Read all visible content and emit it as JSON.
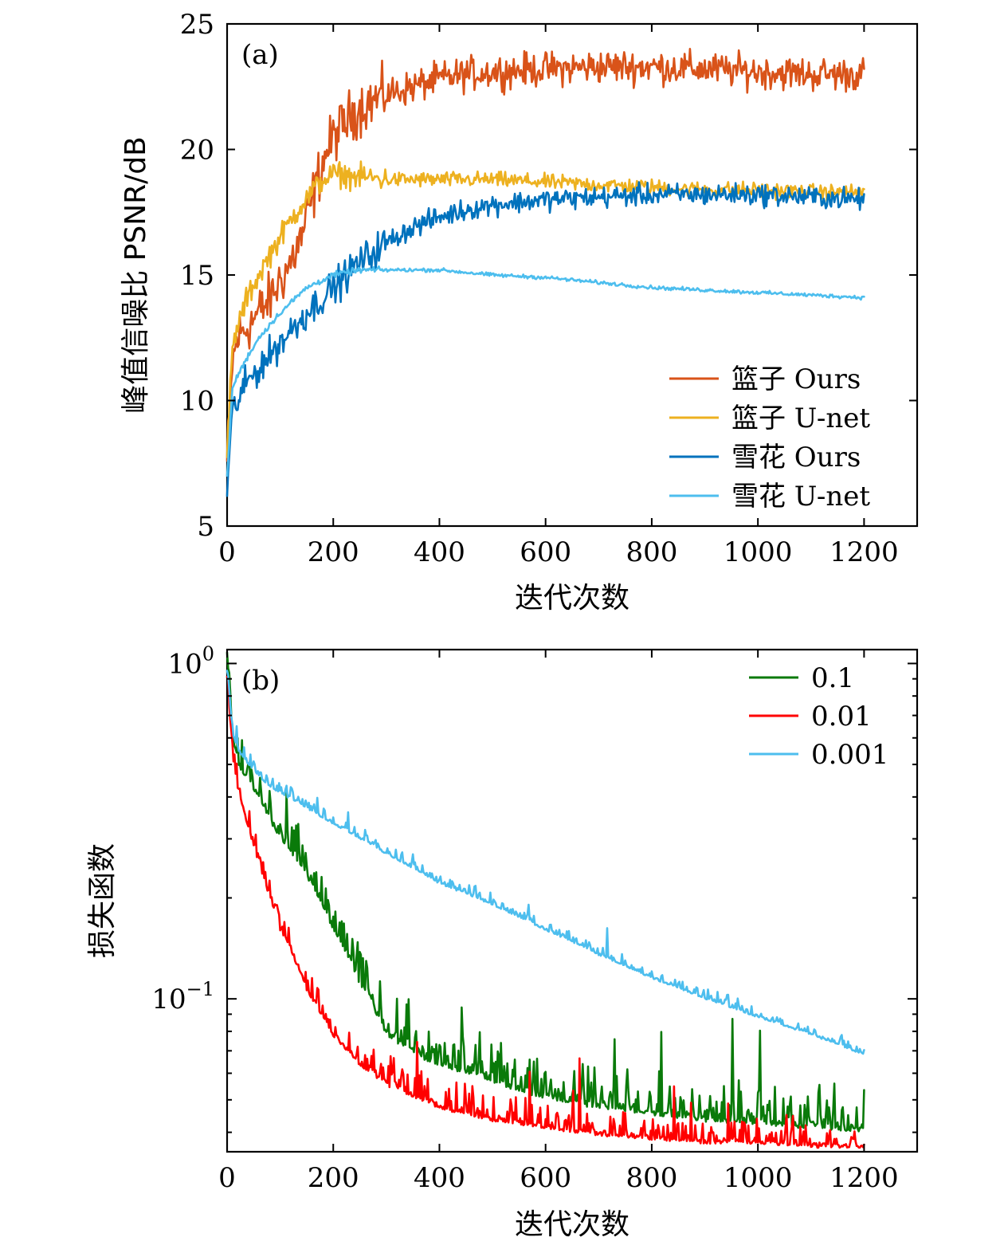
{
  "chart_data": [
    {
      "type": "line",
      "panel_label": "(a)",
      "xlabel": "迭代次数",
      "ylabel": "峰值信噪比 PSNR/dB",
      "xlim": [
        0,
        1300
      ],
      "ylim": [
        5,
        25
      ],
      "xticks": [
        0,
        200,
        400,
        600,
        800,
        1000,
        1200
      ],
      "xtick_labels": [
        "0",
        "200",
        "400",
        "600",
        "800",
        "1000",
        "1200"
      ],
      "yticks": [
        5,
        10,
        15,
        20,
        25
      ],
      "ytick_labels": [
        "5",
        "10",
        "15",
        "20",
        "25"
      ],
      "legend_position": "lower-right",
      "grid": false,
      "series": [
        {
          "name": "篮子 Ours",
          "color": "#d95319",
          "noise": 0.55,
          "x": [
            0,
            10,
            20,
            40,
            60,
            80,
            100,
            120,
            140,
            160,
            180,
            200,
            220,
            240,
            260,
            300,
            350,
            400,
            450,
            500,
            600,
            700,
            800,
            900,
            1000,
            1100,
            1200
          ],
          "y": [
            7.5,
            11.5,
            12.5,
            13.0,
            13.5,
            14.0,
            14.8,
            15.5,
            16.5,
            18.0,
            19.5,
            20.5,
            21.0,
            21.5,
            21.8,
            22.2,
            22.5,
            22.8,
            23.0,
            23.1,
            23.2,
            23.3,
            23.3,
            23.2,
            23.1,
            23.0,
            23.0
          ]
        },
        {
          "name": "篮子 U-net",
          "color": "#edb120",
          "noise": 0.25,
          "x": [
            0,
            10,
            20,
            40,
            60,
            80,
            100,
            120,
            140,
            160,
            180,
            200,
            220,
            240,
            260,
            300,
            350,
            400,
            500,
            600,
            700,
            800,
            900,
            1000,
            1100,
            1200
          ],
          "y": [
            8.0,
            12.0,
            13.0,
            14.2,
            15.0,
            15.8,
            16.5,
            17.2,
            17.8,
            18.3,
            18.8,
            19.0,
            19.0,
            18.9,
            18.9,
            18.8,
            18.8,
            18.8,
            18.8,
            18.7,
            18.6,
            18.5,
            18.4,
            18.4,
            18.3,
            18.3
          ]
        },
        {
          "name": "雪花 Ours",
          "color": "#0072bd",
          "noise": 0.35,
          "x": [
            0,
            10,
            20,
            40,
            60,
            80,
            100,
            150,
            200,
            250,
            300,
            350,
            400,
            450,
            500,
            550,
            600,
            700,
            800,
            900,
            1000,
            1100,
            1200
          ],
          "y": [
            6.5,
            9.5,
            10.0,
            10.8,
            11.3,
            11.8,
            12.3,
            13.5,
            14.5,
            15.5,
            16.3,
            16.9,
            17.3,
            17.6,
            17.8,
            17.9,
            18.0,
            18.1,
            18.2,
            18.2,
            18.2,
            18.1,
            18.0
          ]
        },
        {
          "name": "雪花 U-net",
          "color": "#4dbeee",
          "noise": 0.06,
          "x": [
            0,
            10,
            20,
            40,
            60,
            80,
            100,
            150,
            200,
            250,
            300,
            350,
            400,
            500,
            600,
            700,
            800,
            900,
            1000,
            1100,
            1200
          ],
          "y": [
            7.0,
            10.5,
            11.0,
            11.8,
            12.5,
            13.0,
            13.5,
            14.5,
            15.0,
            15.2,
            15.2,
            15.2,
            15.2,
            15.0,
            14.9,
            14.7,
            14.5,
            14.4,
            14.3,
            14.2,
            14.1
          ]
        }
      ]
    },
    {
      "type": "line",
      "panel_label": "(b)",
      "xlabel": "迭代次数",
      "ylabel": "损失函数",
      "yscale": "log",
      "xlim": [
        0,
        1300
      ],
      "ylim": [
        0.035,
        1.1
      ],
      "xticks": [
        0,
        200,
        400,
        600,
        800,
        1000,
        1200
      ],
      "xtick_labels": [
        "0",
        "200",
        "400",
        "600",
        "800",
        "1000",
        "1200"
      ],
      "yticks_major": [
        1,
        0.1
      ],
      "ytick_labels": [
        {
          "base": "10",
          "exp": "0"
        },
        {
          "base": "10",
          "exp": "−1"
        }
      ],
      "legend_position": "top-right",
      "grid": false,
      "series": [
        {
          "name": "0.1",
          "color": "#0a7a0a",
          "noise": 0.22,
          "x": [
            0,
            10,
            20,
            40,
            60,
            80,
            100,
            150,
            200,
            250,
            300,
            350,
            400,
            500,
            600,
            700,
            800,
            900,
            1000,
            1100,
            1200
          ],
          "y": [
            1.0,
            0.6,
            0.5,
            0.44,
            0.4,
            0.34,
            0.3,
            0.23,
            0.16,
            0.11,
            0.078,
            0.068,
            0.063,
            0.056,
            0.05,
            0.047,
            0.045,
            0.043,
            0.042,
            0.041,
            0.04
          ]
        },
        {
          "name": "0.01",
          "color": "#ff0000",
          "noise": 0.15,
          "x": [
            0,
            10,
            20,
            40,
            60,
            80,
            100,
            150,
            200,
            250,
            300,
            350,
            400,
            500,
            600,
            700,
            800,
            900,
            1000,
            1100,
            1200
          ],
          "y": [
            0.9,
            0.52,
            0.42,
            0.32,
            0.25,
            0.2,
            0.16,
            0.105,
            0.077,
            0.063,
            0.055,
            0.051,
            0.047,
            0.043,
            0.041,
            0.039,
            0.038,
            0.037,
            0.037,
            0.036,
            0.036
          ]
        },
        {
          "name": "0.001",
          "color": "#4dbeee",
          "noise": 0.06,
          "x": [
            0,
            10,
            20,
            40,
            60,
            80,
            100,
            150,
            200,
            250,
            300,
            400,
            500,
            600,
            700,
            800,
            900,
            1000,
            1100,
            1200
          ],
          "y": [
            0.95,
            0.62,
            0.55,
            0.5,
            0.46,
            0.43,
            0.41,
            0.37,
            0.33,
            0.3,
            0.27,
            0.22,
            0.19,
            0.16,
            0.135,
            0.115,
            0.1,
            0.088,
            0.078,
            0.068
          ]
        }
      ]
    }
  ]
}
